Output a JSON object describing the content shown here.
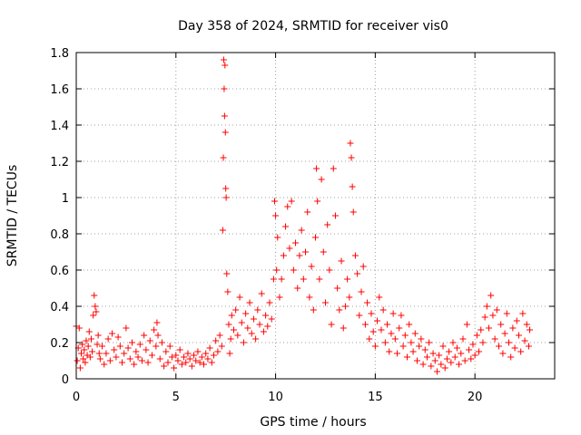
{
  "chart_data": {
    "type": "scatter",
    "title": "Day 358 of 2024, SRMTID for receiver vis0",
    "xlabel": "GPS time / hours",
    "ylabel": "SRMTID / TECUs",
    "xlim": [
      0,
      24
    ],
    "ylim": [
      0,
      1.8
    ],
    "xticks": [
      0,
      5,
      10,
      15,
      20
    ],
    "xtick_labels": [
      "0",
      "5",
      "10",
      "15",
      "20"
    ],
    "yticks": [
      0,
      0.2,
      0.4,
      0.6,
      0.8,
      1.0,
      1.2,
      1.4,
      1.6,
      1.8
    ],
    "ytick_labels": [
      "0",
      "0.2",
      "0.4",
      "0.6",
      "0.8",
      "1",
      "1.2",
      "1.4",
      "1.6",
      "1.8"
    ],
    "grid": true,
    "marker": "+",
    "color": "#ff0000",
    "series": [
      {
        "name": "SRMTID",
        "points": [
          [
            0.0,
            0.29
          ],
          [
            0.05,
            0.1
          ],
          [
            0.1,
            0.17
          ],
          [
            0.15,
            0.28
          ],
          [
            0.2,
            0.06
          ],
          [
            0.25,
            0.14
          ],
          [
            0.3,
            0.19
          ],
          [
            0.35,
            0.11
          ],
          [
            0.4,
            0.16
          ],
          [
            0.45,
            0.09
          ],
          [
            0.5,
            0.21
          ],
          [
            0.55,
            0.13
          ],
          [
            0.6,
            0.18
          ],
          [
            0.65,
            0.26
          ],
          [
            0.7,
            0.12
          ],
          [
            0.75,
            0.22
          ],
          [
            0.8,
            0.15
          ],
          [
            0.85,
            0.35
          ],
          [
            0.9,
            0.46
          ],
          [
            0.95,
            0.4
          ],
          [
            1.0,
            0.37
          ],
          [
            1.05,
            0.19
          ],
          [
            1.1,
            0.24
          ],
          [
            1.15,
            0.14
          ],
          [
            1.2,
            0.11
          ],
          [
            1.3,
            0.18
          ],
          [
            1.4,
            0.08
          ],
          [
            1.5,
            0.14
          ],
          [
            1.6,
            0.22
          ],
          [
            1.7,
            0.1
          ],
          [
            1.8,
            0.25
          ],
          [
            1.9,
            0.16
          ],
          [
            2.0,
            0.12
          ],
          [
            2.1,
            0.23
          ],
          [
            2.2,
            0.18
          ],
          [
            2.3,
            0.09
          ],
          [
            2.4,
            0.14
          ],
          [
            2.5,
            0.28
          ],
          [
            2.6,
            0.17
          ],
          [
            2.7,
            0.11
          ],
          [
            2.8,
            0.2
          ],
          [
            2.9,
            0.08
          ],
          [
            3.0,
            0.15
          ],
          [
            3.1,
            0.12
          ],
          [
            3.2,
            0.19
          ],
          [
            3.3,
            0.1
          ],
          [
            3.4,
            0.24
          ],
          [
            3.5,
            0.16
          ],
          [
            3.6,
            0.09
          ],
          [
            3.7,
            0.21
          ],
          [
            3.8,
            0.13
          ],
          [
            3.9,
            0.27
          ],
          [
            4.0,
            0.18
          ],
          [
            4.05,
            0.31
          ],
          [
            4.1,
            0.24
          ],
          [
            4.2,
            0.11
          ],
          [
            4.3,
            0.2
          ],
          [
            4.4,
            0.07
          ],
          [
            4.5,
            0.15
          ],
          [
            4.6,
            0.09
          ],
          [
            4.7,
            0.18
          ],
          [
            4.8,
            0.12
          ],
          [
            4.9,
            0.06
          ],
          [
            5.0,
            0.13
          ],
          [
            5.1,
            0.1
          ],
          [
            5.2,
            0.16
          ],
          [
            5.3,
            0.08
          ],
          [
            5.4,
            0.12
          ],
          [
            5.5,
            0.09
          ],
          [
            5.6,
            0.14
          ],
          [
            5.7,
            0.11
          ],
          [
            5.8,
            0.07
          ],
          [
            5.9,
            0.13
          ],
          [
            6.0,
            0.1
          ],
          [
            6.1,
            0.15
          ],
          [
            6.2,
            0.09
          ],
          [
            6.3,
            0.12
          ],
          [
            6.4,
            0.08
          ],
          [
            6.5,
            0.14
          ],
          [
            6.6,
            0.11
          ],
          [
            6.7,
            0.17
          ],
          [
            6.8,
            0.09
          ],
          [
            6.9,
            0.13
          ],
          [
            7.0,
            0.21
          ],
          [
            7.1,
            0.15
          ],
          [
            7.2,
            0.24
          ],
          [
            7.3,
            0.18
          ],
          [
            7.35,
            0.82
          ],
          [
            7.38,
            1.22
          ],
          [
            7.4,
            1.76
          ],
          [
            7.42,
            1.6
          ],
          [
            7.44,
            1.45
          ],
          [
            7.46,
            1.73
          ],
          [
            7.48,
            1.36
          ],
          [
            7.5,
            1.05
          ],
          [
            7.52,
            1.0
          ],
          [
            7.55,
            0.58
          ],
          [
            7.6,
            0.48
          ],
          [
            7.65,
            0.3
          ],
          [
            7.7,
            0.14
          ],
          [
            7.75,
            0.22
          ],
          [
            7.8,
            0.35
          ],
          [
            7.9,
            0.27
          ],
          [
            8.0,
            0.38
          ],
          [
            8.1,
            0.24
          ],
          [
            8.2,
            0.45
          ],
          [
            8.3,
            0.31
          ],
          [
            8.4,
            0.2
          ],
          [
            8.5,
            0.36
          ],
          [
            8.6,
            0.28
          ],
          [
            8.7,
            0.42
          ],
          [
            8.8,
            0.25
          ],
          [
            8.9,
            0.33
          ],
          [
            9.0,
            0.22
          ],
          [
            9.1,
            0.38
          ],
          [
            9.2,
            0.3
          ],
          [
            9.3,
            0.47
          ],
          [
            9.4,
            0.26
          ],
          [
            9.5,
            0.35
          ],
          [
            9.6,
            0.29
          ],
          [
            9.7,
            0.42
          ],
          [
            9.8,
            0.33
          ],
          [
            9.9,
            0.55
          ],
          [
            9.95,
            0.98
          ],
          [
            10.0,
            0.9
          ],
          [
            10.05,
            0.6
          ],
          [
            10.1,
            0.78
          ],
          [
            10.2,
            0.45
          ],
          [
            10.3,
            0.55
          ],
          [
            10.4,
            0.68
          ],
          [
            10.5,
            0.84
          ],
          [
            10.6,
            0.95
          ],
          [
            10.7,
            0.72
          ],
          [
            10.8,
            0.98
          ],
          [
            10.9,
            0.6
          ],
          [
            11.0,
            0.75
          ],
          [
            11.1,
            0.5
          ],
          [
            11.2,
            0.68
          ],
          [
            11.3,
            0.82
          ],
          [
            11.4,
            0.55
          ],
          [
            11.5,
            0.7
          ],
          [
            11.6,
            0.92
          ],
          [
            11.7,
            0.45
          ],
          [
            11.8,
            0.62
          ],
          [
            11.9,
            0.38
          ],
          [
            12.0,
            0.78
          ],
          [
            12.05,
            1.16
          ],
          [
            12.1,
            0.98
          ],
          [
            12.2,
            0.55
          ],
          [
            12.3,
            1.1
          ],
          [
            12.4,
            0.7
          ],
          [
            12.5,
            0.42
          ],
          [
            12.6,
            0.85
          ],
          [
            12.7,
            0.6
          ],
          [
            12.8,
            0.3
          ],
          [
            12.9,
            1.16
          ],
          [
            13.0,
            0.9
          ],
          [
            13.1,
            0.5
          ],
          [
            13.2,
            0.38
          ],
          [
            13.3,
            0.65
          ],
          [
            13.4,
            0.28
          ],
          [
            13.5,
            0.4
          ],
          [
            13.6,
            0.55
          ],
          [
            13.7,
            0.45
          ],
          [
            13.75,
            1.3
          ],
          [
            13.8,
            1.22
          ],
          [
            13.85,
            1.06
          ],
          [
            13.9,
            0.92
          ],
          [
            14.0,
            0.68
          ],
          [
            14.1,
            0.58
          ],
          [
            14.2,
            0.35
          ],
          [
            14.3,
            0.48
          ],
          [
            14.4,
            0.62
          ],
          [
            14.5,
            0.3
          ],
          [
            14.6,
            0.42
          ],
          [
            14.7,
            0.22
          ],
          [
            14.8,
            0.36
          ],
          [
            14.9,
            0.26
          ],
          [
            15.0,
            0.18
          ],
          [
            15.1,
            0.32
          ],
          [
            15.2,
            0.45
          ],
          [
            15.3,
            0.27
          ],
          [
            15.4,
            0.38
          ],
          [
            15.5,
            0.2
          ],
          [
            15.6,
            0.3
          ],
          [
            15.7,
            0.15
          ],
          [
            15.8,
            0.25
          ],
          [
            15.9,
            0.36
          ],
          [
            16.0,
            0.22
          ],
          [
            16.1,
            0.14
          ],
          [
            16.2,
            0.28
          ],
          [
            16.3,
            0.35
          ],
          [
            16.4,
            0.18
          ],
          [
            16.5,
            0.24
          ],
          [
            16.6,
            0.12
          ],
          [
            16.7,
            0.3
          ],
          [
            16.8,
            0.2
          ],
          [
            16.9,
            0.15
          ],
          [
            17.0,
            0.25
          ],
          [
            17.1,
            0.1
          ],
          [
            17.2,
            0.18
          ],
          [
            17.3,
            0.22
          ],
          [
            17.4,
            0.08
          ],
          [
            17.5,
            0.16
          ],
          [
            17.6,
            0.12
          ],
          [
            17.7,
            0.2
          ],
          [
            17.8,
            0.07
          ],
          [
            17.9,
            0.14
          ],
          [
            18.0,
            0.1
          ],
          [
            18.1,
            0.04
          ],
          [
            18.2,
            0.13
          ],
          [
            18.3,
            0.08
          ],
          [
            18.4,
            0.18
          ],
          [
            18.5,
            0.06
          ],
          [
            18.6,
            0.11
          ],
          [
            18.7,
            0.15
          ],
          [
            18.8,
            0.09
          ],
          [
            18.9,
            0.2
          ],
          [
            19.0,
            0.12
          ],
          [
            19.1,
            0.17
          ],
          [
            19.2,
            0.08
          ],
          [
            19.3,
            0.14
          ],
          [
            19.4,
            0.22
          ],
          [
            19.5,
            0.1
          ],
          [
            19.6,
            0.3
          ],
          [
            19.7,
            0.16
          ],
          [
            19.8,
            0.11
          ],
          [
            19.9,
            0.19
          ],
          [
            20.0,
            0.13
          ],
          [
            20.1,
            0.24
          ],
          [
            20.2,
            0.15
          ],
          [
            20.3,
            0.27
          ],
          [
            20.4,
            0.2
          ],
          [
            20.5,
            0.34
          ],
          [
            20.6,
            0.4
          ],
          [
            20.7,
            0.28
          ],
          [
            20.8,
            0.46
          ],
          [
            20.9,
            0.35
          ],
          [
            21.0,
            0.22
          ],
          [
            21.1,
            0.38
          ],
          [
            21.2,
            0.18
          ],
          [
            21.3,
            0.3
          ],
          [
            21.4,
            0.14
          ],
          [
            21.5,
            0.25
          ],
          [
            21.6,
            0.36
          ],
          [
            21.7,
            0.2
          ],
          [
            21.8,
            0.12
          ],
          [
            21.9,
            0.28
          ],
          [
            22.0,
            0.17
          ],
          [
            22.1,
            0.32
          ],
          [
            22.2,
            0.24
          ],
          [
            22.3,
            0.15
          ],
          [
            22.4,
            0.36
          ],
          [
            22.5,
            0.21
          ],
          [
            22.6,
            0.3
          ],
          [
            22.7,
            0.18
          ],
          [
            22.75,
            0.27
          ]
        ]
      }
    ]
  }
}
